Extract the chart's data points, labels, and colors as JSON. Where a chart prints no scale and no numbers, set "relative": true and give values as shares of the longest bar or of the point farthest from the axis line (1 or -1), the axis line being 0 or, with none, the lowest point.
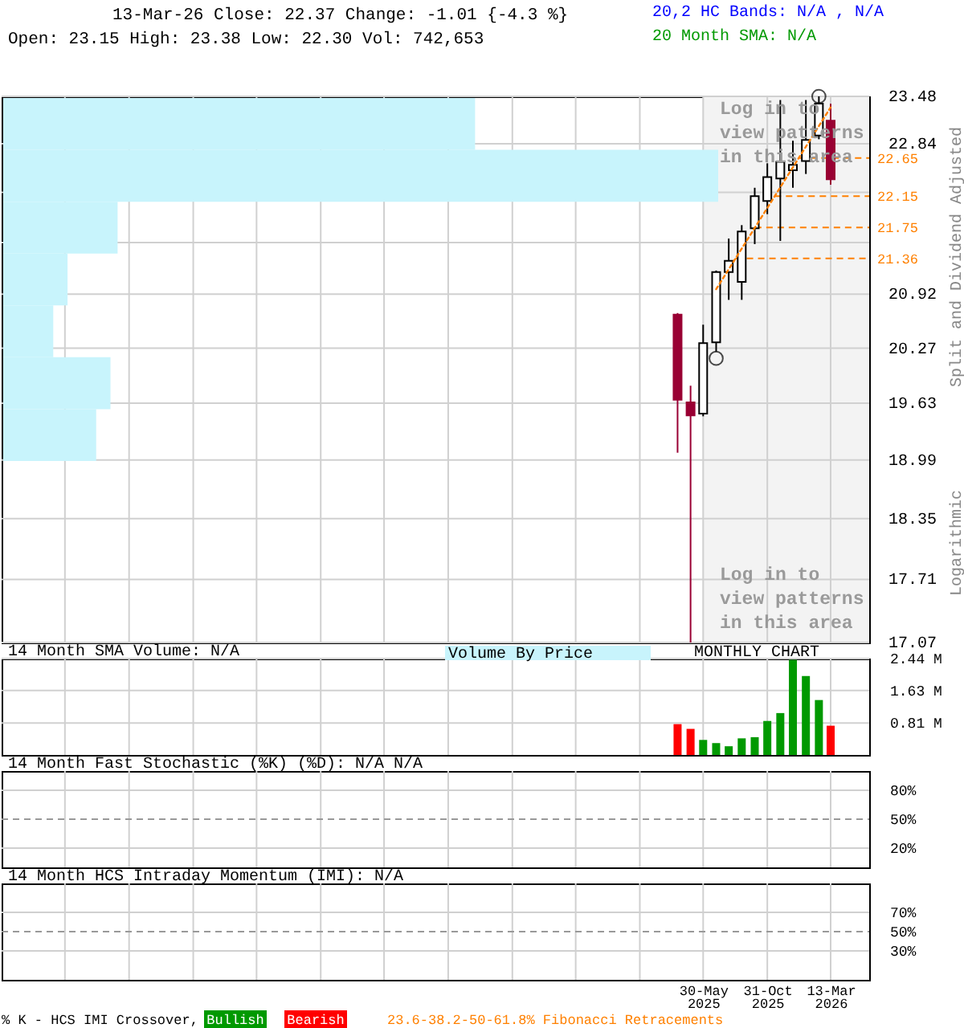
{
  "chart_data": [
    {
      "type": "candlestick",
      "title": "13-Mar-26 Close: 22.37 Change: -1.01 {-4.3 %}",
      "subtitle": "Open: 23.15 High: 23.38 Low: 22.30 Vol: 742,653",
      "x": [
        "2025-03",
        "2025-04",
        "2025-05",
        "2025-06",
        "2025-07",
        "2025-08",
        "2025-09",
        "2025-10",
        "2025-11",
        "2025-12",
        "2026-01",
        "2026-02",
        "2026-03"
      ],
      "ohlc": [
        [
          20.67,
          20.69,
          19.07,
          19.67
        ],
        [
          19.64,
          19.83,
          17.07,
          19.49
        ],
        [
          19.51,
          20.55,
          19.48,
          20.33
        ],
        [
          20.34,
          21.21,
          20.23,
          21.19
        ],
        [
          21.19,
          21.61,
          20.85,
          21.33
        ],
        [
          21.07,
          21.78,
          20.85,
          21.7
        ],
        [
          21.74,
          22.26,
          21.54,
          22.15
        ],
        [
          22.09,
          22.58,
          21.92,
          22.4
        ],
        [
          22.38,
          23.43,
          21.58,
          22.6
        ],
        [
          22.49,
          22.88,
          22.26,
          22.56
        ],
        [
          22.61,
          23.43,
          22.44,
          22.89
        ],
        [
          22.95,
          23.48,
          22.9,
          23.38
        ],
        [
          23.15,
          23.38,
          22.3,
          22.37
        ]
      ],
      "colors": [
        "#990033",
        "#990033",
        "#ffffff",
        "#ffffff",
        "#ffffff",
        "#ffffff",
        "#ffffff",
        "#ffffff",
        "#ffffff",
        "#ffffff",
        "#ffffff",
        "#ffffff",
        "#990033"
      ],
      "series": [
        {
          "type": "line",
          "x": [
            "2025-06",
            "2026-03"
          ],
          "values": [
            20.98,
            23.33
          ],
          "color": "#ff8000",
          "line_style": "dotted"
        },
        {
          "type": "scatter",
          "x": [
            "2025-06",
            "2026-02"
          ],
          "values": [
            20.15,
            23.48
          ],
          "color": "#000000",
          "marker": "circle"
        }
      ],
      "xlim": [
        "2020-10",
        "2026-06"
      ],
      "xticks": [
        {
          "value": "2021-03",
          "label": null
        },
        {
          "value": "2021-08",
          "label": null
        },
        {
          "value": "2022-01",
          "label": null
        },
        {
          "value": "2022-06",
          "label": null
        },
        {
          "value": "2022-11",
          "label": null
        },
        {
          "value": "2023-04",
          "label": null
        },
        {
          "value": "2023-09",
          "label": null
        },
        {
          "value": "2024-02",
          "label": null
        },
        {
          "value": "2024-07",
          "label": null
        },
        {
          "value": "2024-12",
          "label": null
        },
        {
          "value": "2025-05",
          "label": null
        },
        {
          "value": "2025-10",
          "label": null
        },
        {
          "value": "2026-03",
          "label": null
        }
      ],
      "ylim": [
        17.07,
        23.48
      ],
      "yticks": [
        17.07,
        17.71,
        18.35,
        18.99,
        19.63,
        20.27,
        20.92,
        {
          "value": 21.56,
          "label": null
        },
        {
          "value": 22.2,
          "label": null
        },
        22.84,
        23.48
      ],
      "log": true,
      "grid": true,
      "tick_labels": "y",
      "bands": [
        {
          "axis": "x",
          "from": "2025-05",
          "to": "2026-06",
          "color": "#f3f3f3"
        }
      ],
      "ref_lines": [
        {
          "axis": "y",
          "value": 22.65,
          "label": "22.65",
          "color": "#ff8000",
          "line_style": "dashed"
        },
        {
          "axis": "y",
          "value": 22.15,
          "label": "22.15",
          "color": "#ff8000",
          "line_style": "dashed"
        },
        {
          "axis": "y",
          "value": 21.75,
          "label": "21.75",
          "color": "#ff8000",
          "line_style": "dashed"
        },
        {
          "axis": "y",
          "value": 21.36,
          "label": "21.36",
          "color": "#ff8000",
          "line_style": "dashed"
        }
      ],
      "annotations": [
        "20,2 HC Bands: N/A , N/A",
        "20 Month SMA: N/A",
        "Log in to view patterns in this area",
        "Log in to view patterns in this area",
        "MONTHLY CHART",
        "Split and Dividend Adjusted",
        "Logarithmic"
      ]
    },
    {
      "type": "bar",
      "orientation": "horizontal",
      "relative": true,
      "title": "Volume By Price",
      "categories": [
        null,
        null,
        null,
        null,
        null,
        null,
        null
      ],
      "values": [
        0.66,
        1,
        0.16,
        0.09,
        0.07,
        0.15,
        0.13
      ],
      "color": "#c8f4fc"
    },
    {
      "type": "bar",
      "title": "14 Month SMA Volume: N/A",
      "x": [
        "2025-03",
        "2025-04",
        "2025-05",
        "2025-06",
        "2025-07",
        "2025-08",
        "2025-09",
        "2025-10",
        "2025-11",
        "2025-12",
        "2026-01",
        "2026-02",
        "2026-03"
      ],
      "values": [
        0.78,
        0.66,
        0.38,
        0.3,
        0.22,
        0.42,
        0.45,
        0.86,
        1.06,
        2.41,
        2.0,
        1.39,
        0.74
      ],
      "colors": [
        "#ff0000",
        "#ff0000",
        "#009900",
        "#009900",
        "#009900",
        "#009900",
        "#009900",
        "#009900",
        "#009900",
        "#009900",
        "#009900",
        "#009900",
        "#ff0000"
      ],
      "xlim": [
        "2020-10",
        "2026-06"
      ],
      "xticks": [
        {
          "value": "2021-03",
          "label": null
        },
        {
          "value": "2021-08",
          "label": null
        },
        {
          "value": "2022-01",
          "label": null
        },
        {
          "value": "2022-06",
          "label": null
        },
        {
          "value": "2022-11",
          "label": null
        },
        {
          "value": "2023-04",
          "label": null
        },
        {
          "value": "2023-09",
          "label": null
        },
        {
          "value": "2024-02",
          "label": null
        },
        {
          "value": "2024-07",
          "label": null
        },
        {
          "value": "2024-12",
          "label": null
        },
        {
          "value": "2025-05",
          "label": null
        },
        {
          "value": "2025-10",
          "label": null
        },
        {
          "value": "2026-03",
          "label": null
        }
      ],
      "ylim": [
        0,
        2.44
      ],
      "yticks": [
        {
          "value": 0.81,
          "label": "0.81 M"
        },
        {
          "value": 1.63,
          "label": "1.63 M"
        },
        {
          "value": 2.44,
          "label": "2.44 M"
        }
      ],
      "grid": true,
      "tick_labels": "y"
    },
    {
      "type": "line",
      "title": "14 Month Fast Stochastic (%K) (%D): N/A N/A",
      "xlim": [
        "2020-10",
        "2026-06"
      ],
      "xticks": [
        {
          "value": "2021-03",
          "label": null
        },
        {
          "value": "2021-08",
          "label": null
        },
        {
          "value": "2022-01",
          "label": null
        },
        {
          "value": "2022-06",
          "label": null
        },
        {
          "value": "2022-11",
          "label": null
        },
        {
          "value": "2023-04",
          "label": null
        },
        {
          "value": "2023-09",
          "label": null
        },
        {
          "value": "2024-02",
          "label": null
        },
        {
          "value": "2024-07",
          "label": null
        },
        {
          "value": "2024-12",
          "label": null
        },
        {
          "value": "2025-05",
          "label": null
        },
        {
          "value": "2025-10",
          "label": null
        },
        {
          "value": "2026-03",
          "label": null
        }
      ],
      "ylim": [
        0,
        100
      ],
      "yticks": [
        {
          "value": 20,
          "label": "20%"
        },
        {
          "value": 50,
          "label": "50%"
        },
        {
          "value": 80,
          "label": "80%"
        }
      ],
      "ref_lines": [
        {
          "axis": "y",
          "value": 50,
          "color": "#999999",
          "line_style": "dashed"
        }
      ],
      "grid": true,
      "tick_labels": "y"
    },
    {
      "type": "line",
      "title": "14 Month HCS Intraday Momentum (IMI): N/A",
      "xlim": [
        "2020-10",
        "2026-06"
      ],
      "xticks": [
        {
          "value": "2021-03",
          "label": null
        },
        {
          "value": "2021-08",
          "label": null
        },
        {
          "value": "2022-01",
          "label": null
        },
        {
          "value": "2022-06",
          "label": null
        },
        {
          "value": "2022-11",
          "label": null
        },
        {
          "value": "2023-04",
          "label": null
        },
        {
          "value": "2023-09",
          "label": null
        },
        {
          "value": "2024-02",
          "label": null
        },
        {
          "value": "2024-07",
          "label": null
        },
        {
          "value": "2024-12",
          "label": null
        },
        {
          "value": "2025-05",
          "label": "30-May 2025"
        },
        {
          "value": "2025-10",
          "label": "31-Oct 2025"
        },
        {
          "value": "2026-03",
          "label": "13-Mar 2026"
        }
      ],
      "ylim": [
        0,
        100
      ],
      "yticks": [
        {
          "value": 30,
          "label": "30%"
        },
        {
          "value": 50,
          "label": "50%"
        },
        {
          "value": 70,
          "label": "70%"
        }
      ],
      "ref_lines": [
        {
          "axis": "y",
          "value": 50,
          "color": "#999999",
          "line_style": "dashed"
        }
      ],
      "grid": true,
      "annotations": [
        "% K - HCS IMI Crossover,",
        "Bullish",
        "Bearish",
        "23.6-38.2-50-61.8% Fibonacci Retracements"
      ]
    }
  ]
}
